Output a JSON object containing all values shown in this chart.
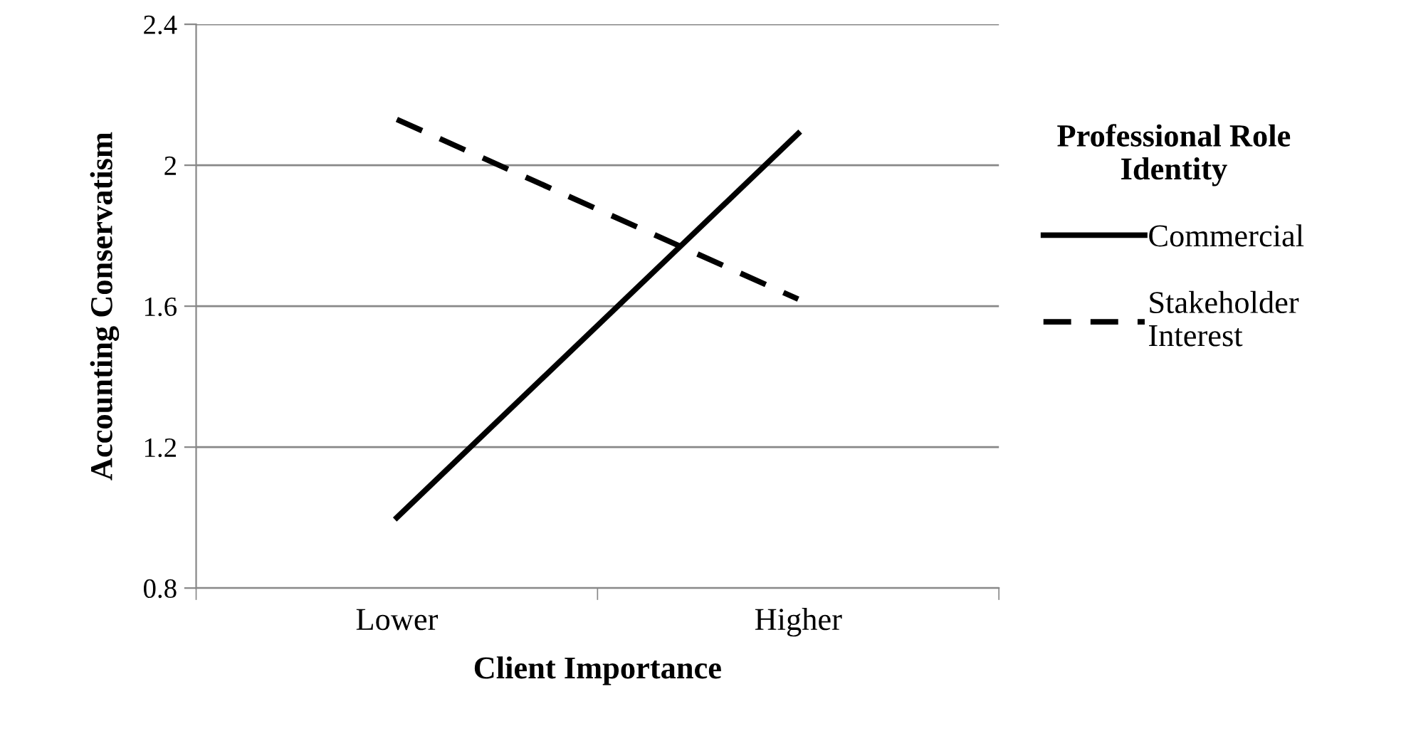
{
  "chart_data": {
    "type": "line",
    "xlabel": "Client Importance",
    "ylabel": "Accounting Conservatism",
    "legend_title": "Professional Role\nIdentity",
    "categories": [
      "Lower",
      "Higher"
    ],
    "series": [
      {
        "name": "Commercial",
        "color": "#000000",
        "line_style": "solid",
        "values": [
          1.0,
          2.09
        ]
      },
      {
        "name": "Stakeholder\nInterest",
        "color": "#000000",
        "line_style": "dashed",
        "values": [
          2.13,
          1.62
        ]
      }
    ],
    "ylim": [
      0.8,
      2.4
    ],
    "yticks": [
      0.8,
      1.2,
      1.6,
      2,
      2.4
    ],
    "grid": "y",
    "legend": "right",
    "marker": "none"
  }
}
